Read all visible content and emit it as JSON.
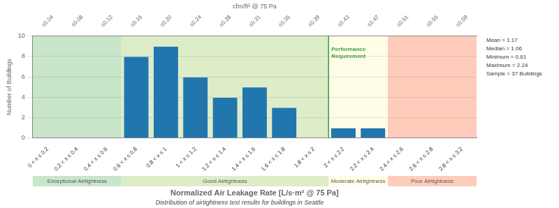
{
  "chart_data": {
    "type": "bar",
    "categories": [
      "0 < x ≤ 0.2",
      "0.2 < x ≤ 0.4",
      "0.4 < x ≤ 0.6",
      "0.6 < x ≤ 0.8",
      "0.8 < x ≤ 1",
      "1 < x ≤ 1.2",
      "1.2 < x ≤ 1.4",
      "1.4 < x ≤ 1.6",
      "1.6 < x ≤ 1.8",
      "1.8 < x ≤ 2",
      "2 < x ≤ 2.2",
      "2.2 < x ≤ 2.4",
      "2.4 < x ≤ 2.6",
      "2.6 < x ≤ 2.8",
      "2.8 < x ≤ 3.2"
    ],
    "values": [
      0,
      0,
      0,
      8,
      9,
      6,
      4,
      5,
      3,
      0,
      1,
      1,
      0,
      0,
      0
    ],
    "color": "#2176ae",
    "ylim": [
      0,
      10
    ],
    "yticks": [
      0,
      2,
      4,
      6,
      8,
      10
    ],
    "grid": true,
    "ylabel": "Number of Buildings",
    "xlabel": "Normalized Air Leakage Rate [L/s·m² @ 75 Pa]",
    "subtitle": "Distribution of airtightness test results for buildings in Seattle",
    "top_axis_label": "cfm/ft² @ 75 Pa",
    "top_categories": [
      "≤0.04",
      "≤0.08",
      "≤0.12",
      "≤0.16",
      "≤0.20",
      "≤0.24",
      "≤0.28",
      "≤0.31",
      "≤0.35",
      "≤0.39",
      "≤0.43",
      "≤0.47",
      "≤0.51",
      "≤0.55",
      "≤0.59"
    ],
    "zones": [
      {
        "label": "Exceptional Airtightness",
        "color": "#c8e6c9",
        "from": "0 < x ≤ 0.2",
        "to": "0.4 < x ≤ 0.6"
      },
      {
        "label": "Good Airtightness",
        "color": "#dcedc8",
        "from": "0.6 < x ≤ 0.8",
        "to": "1.8 < x ≤ 2"
      },
      {
        "label": "Moderate Airtightness",
        "color": "#fffde7",
        "from": "2 < x ≤ 2.2",
        "to": "2.2 < x ≤ 2.4"
      },
      {
        "label": "Poor Airtightness",
        "color": "#ffccbc",
        "from": "2.4 < x ≤ 2.6",
        "to": "2.8 < x ≤ 3.2"
      }
    ],
    "reference_line": {
      "text": "Performance\nRequirement",
      "color": "#3a9e44",
      "after": "1.8 < x ≤ 2",
      "at": 9
    },
    "annotations": [
      "Mean = 1.17",
      "Median = 1.06",
      "Minimum = 0.61",
      "Maximum = 2.24",
      "Sample = 37 Buildings"
    ]
  }
}
